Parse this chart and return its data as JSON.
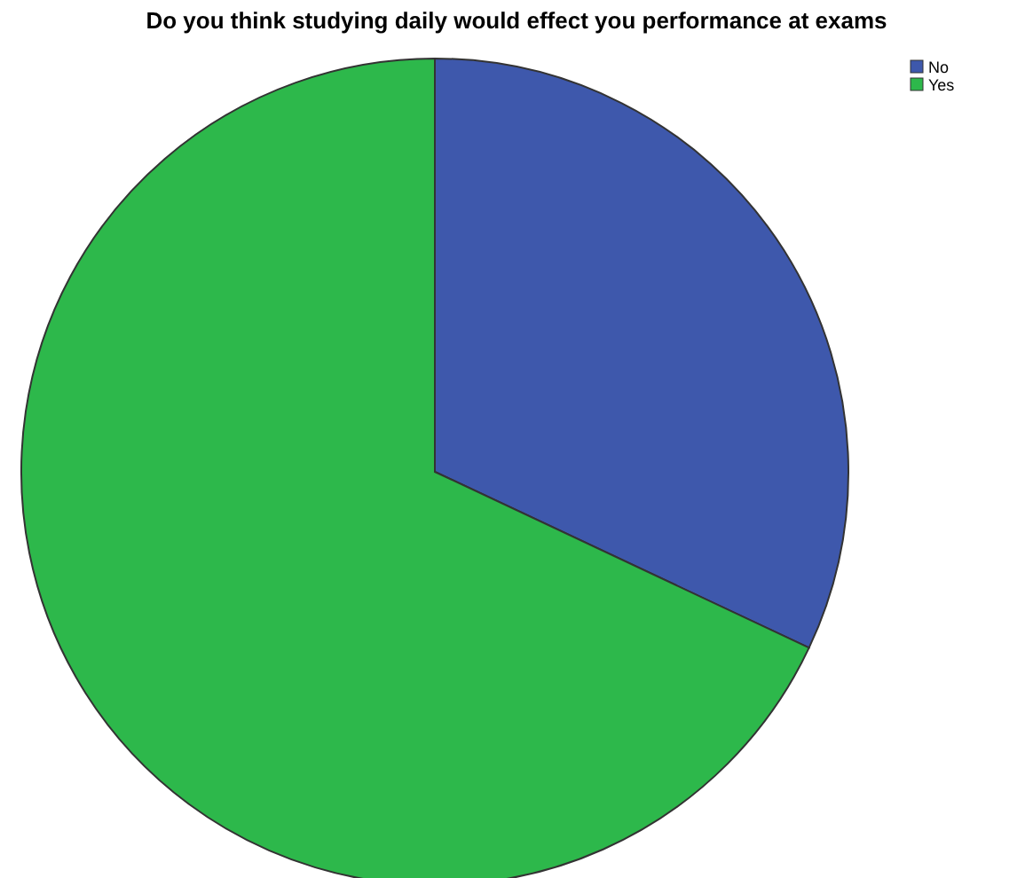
{
  "chart_data": {
    "type": "pie",
    "title": "Do you think studying daily would effect you performance at exams",
    "categories": [
      "No",
      "Yes"
    ],
    "values": [
      32,
      68
    ],
    "colors": [
      "#3e58ac",
      "#2db84b"
    ],
    "legend": "top right"
  }
}
